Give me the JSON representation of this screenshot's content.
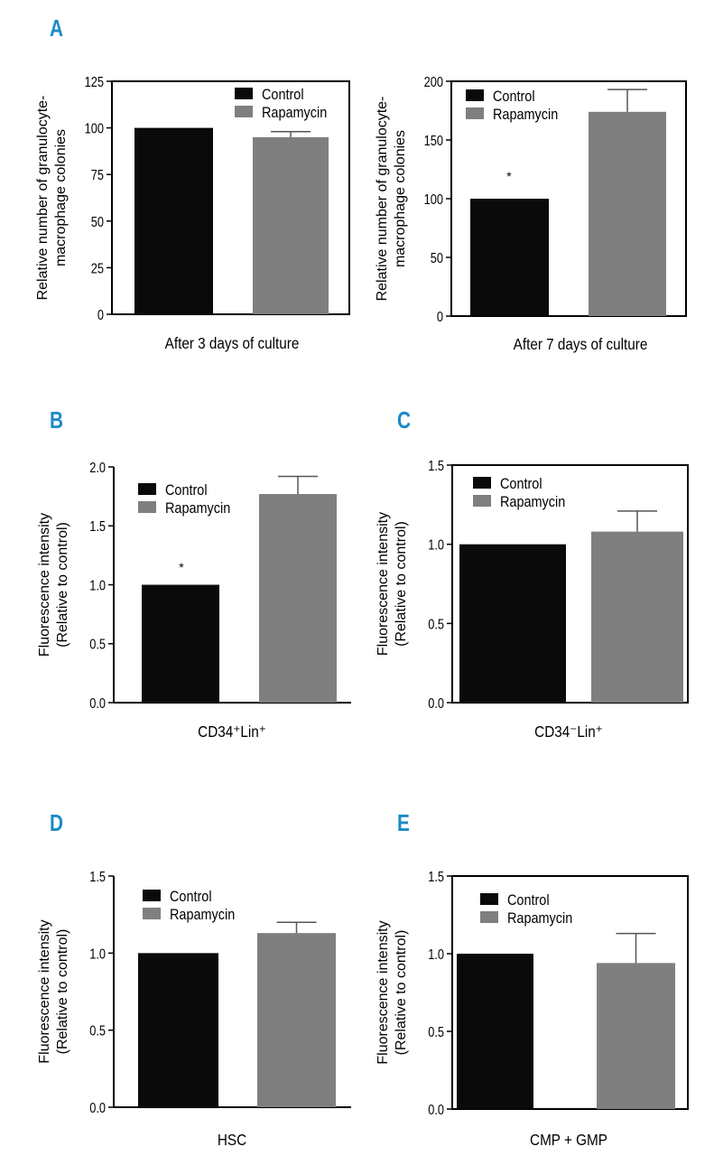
{
  "panel_labels": [
    "A",
    "B",
    "C",
    "D",
    "E"
  ],
  "colors": {
    "label": "#1a8ac6",
    "control": "#0a0a0a",
    "rapamycin": "#7f7f7f"
  },
  "chart_data": [
    {
      "type": "bar",
      "panel": "A",
      "title": "",
      "xlabel": "After 3 days of culture",
      "ylabel": [
        "Relative number of granulocyte-",
        "macrophage colonies"
      ],
      "ylim": [
        0,
        125
      ],
      "yticks": [
        "0",
        "25",
        "50",
        "75",
        "100",
        "125"
      ],
      "ytick_values": [
        0,
        25,
        50,
        75,
        100,
        125
      ],
      "legend": [
        "Control",
        "Rapamycin"
      ],
      "legend_position": "top-right",
      "categories": [
        "Control",
        "Rapamycin"
      ],
      "values": [
        100,
        95
      ],
      "error_upper": [
        null,
        98
      ],
      "annotations": []
    },
    {
      "type": "bar",
      "panel": "A",
      "title": "",
      "xlabel": "After 7 days of culture",
      "ylabel": [
        "Relative number of granulocyte-",
        "macrophage colonies"
      ],
      "ylim": [
        0,
        200
      ],
      "yticks": [
        "0",
        "50",
        "100",
        "150",
        "200"
      ],
      "ytick_values": [
        0,
        50,
        100,
        150,
        200
      ],
      "legend": [
        "Control",
        "Rapamycin"
      ],
      "legend_position": "top-left",
      "categories": [
        "Control",
        "Rapamycin"
      ],
      "values": [
        100,
        174
      ],
      "error_upper": [
        null,
        193
      ],
      "annotations": [
        "*"
      ]
    },
    {
      "type": "bar",
      "panel": "B",
      "title": "",
      "xlabel": "CD34⁺Lin⁺",
      "ylabel": [
        "Fluorescence intensity",
        "(Relative to control)"
      ],
      "ylim": [
        0,
        2.0
      ],
      "yticks": [
        "0.0",
        "0.5",
        "1.0",
        "1.5",
        "2.0"
      ],
      "ytick_values": [
        0,
        0.5,
        1.0,
        1.5,
        2.0
      ],
      "legend": [
        "Control",
        "Rapamycin"
      ],
      "legend_position": "top-left",
      "categories": [
        "Control",
        "Rapamycin"
      ],
      "values": [
        1.0,
        1.77
      ],
      "error_upper": [
        null,
        1.92
      ],
      "annotations": [
        "*"
      ]
    },
    {
      "type": "bar",
      "panel": "C",
      "title": "",
      "xlabel": "CD34⁻Lin⁺",
      "ylabel": [
        "Fluorescence intensity",
        "(Relative to control)"
      ],
      "ylim": [
        0,
        1.5
      ],
      "yticks": [
        "0.0",
        "0.5",
        "1.0",
        "1.5"
      ],
      "ytick_values": [
        0,
        0.5,
        1.0,
        1.5
      ],
      "legend": [
        "Control",
        "Rapamycin"
      ],
      "legend_position": "top-left",
      "categories": [
        "Control",
        "Rapamycin"
      ],
      "values": [
        1.0,
        1.08
      ],
      "error_upper": [
        null,
        1.21
      ],
      "annotations": []
    },
    {
      "type": "bar",
      "panel": "D",
      "title": "",
      "xlabel": "HSC",
      "ylabel": [
        "Fluorescence intensity",
        "(Relative to control)"
      ],
      "ylim": [
        0,
        1.5
      ],
      "yticks": [
        "0.0",
        "0.5",
        "1.0",
        "1.5"
      ],
      "ytick_values": [
        0,
        0.5,
        1.0,
        1.5
      ],
      "legend": [
        "Control",
        "Rapamycin"
      ],
      "legend_position": "top-left",
      "categories": [
        "Control",
        "Rapamycin"
      ],
      "values": [
        1.0,
        1.13
      ],
      "error_upper": [
        null,
        1.2
      ],
      "annotations": []
    },
    {
      "type": "bar",
      "panel": "E",
      "title": "",
      "xlabel": "CMP + GMP",
      "ylabel": [
        "Fluorescence intensity",
        "(Relative to control)"
      ],
      "ylim": [
        0,
        1.5
      ],
      "yticks": [
        "0.0",
        "0.5",
        "1.0",
        "1.5"
      ],
      "ytick_values": [
        0,
        0.5,
        1.0,
        1.5
      ],
      "legend": [
        "Control",
        "Rapamycin"
      ],
      "legend_position": "top-left",
      "categories": [
        "Control",
        "Rapamycin"
      ],
      "values": [
        1.0,
        0.94
      ],
      "error_upper": [
        null,
        1.13
      ],
      "annotations": []
    }
  ]
}
